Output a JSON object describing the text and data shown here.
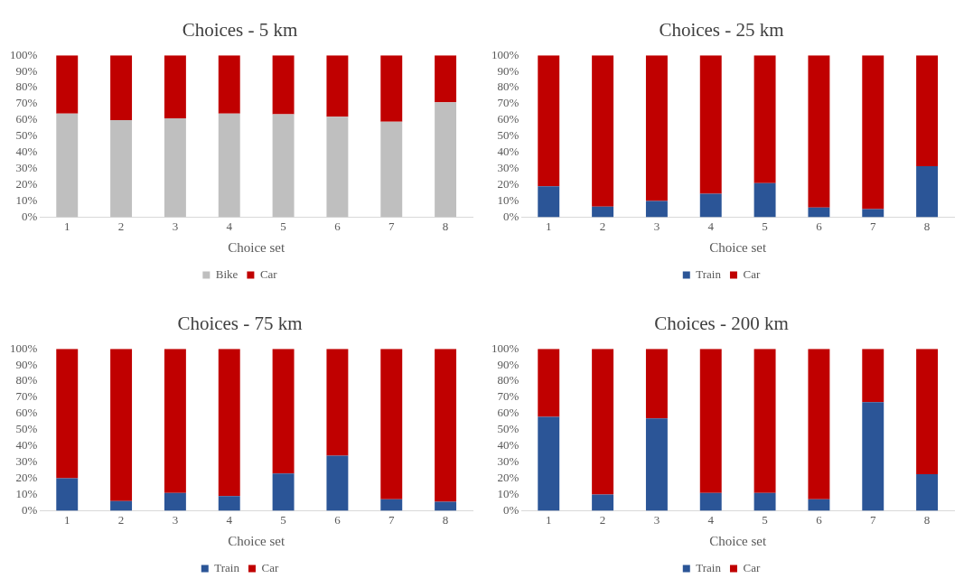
{
  "chart_data": [
    {
      "type": "bar",
      "title": "Choices - 5 km",
      "xlabel": "Choice set",
      "categories": [
        "1",
        "2",
        "3",
        "4",
        "5",
        "6",
        "7",
        "8"
      ],
      "stacked": true,
      "legend": "bottom",
      "grid": false,
      "series": [
        {
          "name": "Bike",
          "color": "#bfbfbf",
          "values": [
            64,
            60,
            61,
            64,
            63.5,
            62,
            59,
            71
          ]
        },
        {
          "name": "Car",
          "color": "#c00000",
          "values": [
            36,
            40,
            39,
            36,
            36.5,
            38,
            41,
            29
          ]
        }
      ],
      "ylim": [
        0,
        100
      ],
      "yticks": [
        {
          "value": 0,
          "label": "0%"
        },
        {
          "value": 10,
          "label": "10%"
        },
        {
          "value": 20,
          "label": "20%"
        },
        {
          "value": 30,
          "label": "30%"
        },
        {
          "value": 40,
          "label": "40%"
        },
        {
          "value": 50,
          "label": "50%"
        },
        {
          "value": 60,
          "label": "60%"
        },
        {
          "value": 70,
          "label": "70%"
        },
        {
          "value": 80,
          "label": "80%"
        },
        {
          "value": 90,
          "label": "90%"
        },
        {
          "value": 100,
          "label": "100%"
        }
      ]
    },
    {
      "type": "bar",
      "title": "Choices - 25 km",
      "xlabel": "Choice set",
      "categories": [
        "1",
        "2",
        "3",
        "4",
        "5",
        "6",
        "7",
        "8"
      ],
      "stacked": true,
      "legend": "bottom",
      "grid": false,
      "series": [
        {
          "name": "Train",
          "color": "#2b5597",
          "values": [
            19,
            6.5,
            10,
            14.5,
            21,
            6,
            5,
            31.5
          ]
        },
        {
          "name": "Car",
          "color": "#c00000",
          "values": [
            81,
            93.5,
            90,
            85.5,
            79,
            94,
            95,
            68.5
          ]
        }
      ],
      "ylim": [
        0,
        100
      ],
      "yticks": [
        {
          "value": 0,
          "label": "0%"
        },
        {
          "value": 10,
          "label": "10%"
        },
        {
          "value": 20,
          "label": "20%"
        },
        {
          "value": 30,
          "label": "30%"
        },
        {
          "value": 40,
          "label": "40%"
        },
        {
          "value": 50,
          "label": "50%"
        },
        {
          "value": 60,
          "label": "60%"
        },
        {
          "value": 70,
          "label": "70%"
        },
        {
          "value": 80,
          "label": "80%"
        },
        {
          "value": 90,
          "label": "90%"
        },
        {
          "value": 100,
          "label": "100%"
        }
      ]
    },
    {
      "type": "bar",
      "title": "Choices - 75 km",
      "xlabel": "Choice set",
      "categories": [
        "1",
        "2",
        "3",
        "4",
        "5",
        "6",
        "7",
        "8"
      ],
      "stacked": true,
      "legend": "bottom",
      "grid": false,
      "series": [
        {
          "name": "Train",
          "color": "#2b5597",
          "values": [
            20,
            6,
            11,
            9,
            23,
            34,
            7,
            5.5
          ]
        },
        {
          "name": "Car",
          "color": "#c00000",
          "values": [
            80,
            94,
            89,
            91,
            77,
            66,
            93,
            94.5
          ]
        }
      ],
      "ylim": [
        0,
        100
      ],
      "yticks": [
        {
          "value": 0,
          "label": "0%"
        },
        {
          "value": 10,
          "label": "10%"
        },
        {
          "value": 20,
          "label": "20%"
        },
        {
          "value": 30,
          "label": "30%"
        },
        {
          "value": 40,
          "label": "40%"
        },
        {
          "value": 50,
          "label": "50%"
        },
        {
          "value": 60,
          "label": "60%"
        },
        {
          "value": 70,
          "label": "70%"
        },
        {
          "value": 80,
          "label": "80%"
        },
        {
          "value": 90,
          "label": "90%"
        },
        {
          "value": 100,
          "label": "100%"
        }
      ]
    },
    {
      "type": "bar",
      "title": "Choices - 200 km",
      "xlabel": "Choice set",
      "categories": [
        "1",
        "2",
        "3",
        "4",
        "5",
        "6",
        "7",
        "8"
      ],
      "stacked": true,
      "legend": "bottom",
      "grid": false,
      "series": [
        {
          "name": "Train",
          "color": "#2b5597",
          "values": [
            58,
            10,
            57,
            11,
            11,
            7,
            67,
            22.5
          ]
        },
        {
          "name": "Car",
          "color": "#c00000",
          "values": [
            42,
            90,
            43,
            89,
            89,
            93,
            33,
            77.5
          ]
        }
      ],
      "ylim": [
        0,
        100
      ],
      "yticks": [
        {
          "value": 0,
          "label": "0%"
        },
        {
          "value": 10,
          "label": "10%"
        },
        {
          "value": 20,
          "label": "20%"
        },
        {
          "value": 30,
          "label": "30%"
        },
        {
          "value": 40,
          "label": "40%"
        },
        {
          "value": 50,
          "label": "50%"
        },
        {
          "value": 60,
          "label": "60%"
        },
        {
          "value": 70,
          "label": "70%"
        },
        {
          "value": 80,
          "label": "80%"
        },
        {
          "value": 90,
          "label": "90%"
        },
        {
          "value": 100,
          "label": "100%"
        }
      ]
    }
  ]
}
